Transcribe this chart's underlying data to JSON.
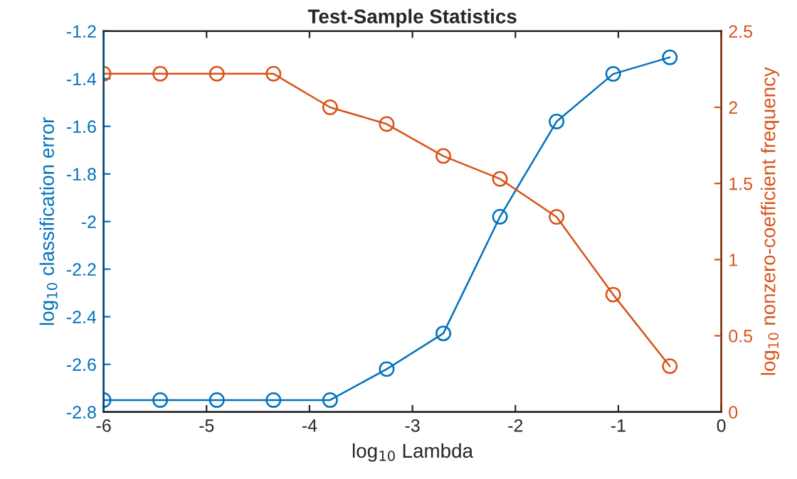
{
  "chart_data": {
    "type": "line",
    "title": "Test-Sample Statistics",
    "xlabel": "log$_{10}$ Lambda",
    "ylabel": "log$_{10}$ classification error",
    "y2label": "log$_{10}$ nonzero-coefficient frequency",
    "x": [
      -6,
      -5.45,
      -4.9,
      -4.35,
      -3.8,
      -3.25,
      -2.7,
      -2.15,
      -1.6,
      -1.05,
      -0.5
    ],
    "series": [
      {
        "color": "#0072bd",
        "values": [
          -2.75,
          -2.75,
          -2.75,
          -2.75,
          -2.75,
          -2.62,
          -2.47,
          -1.98,
          -1.58,
          -1.38,
          -1.31
        ]
      },
      {
        "color": "#d95319",
        "axis": "y2",
        "values": [
          2.22,
          2.22,
          2.22,
          2.22,
          2.0,
          1.89,
          1.68,
          1.53,
          1.28,
          0.77,
          0.3
        ]
      }
    ],
    "xlim": [
      -6,
      0
    ],
    "xticks": [
      -6,
      -5,
      -4,
      -3,
      -2,
      -1,
      0
    ],
    "ylim": [
      -2.8,
      -1.2
    ],
    "yticks": [
      -2.8,
      -2.6,
      -2.4,
      -2.2,
      -2,
      -1.8,
      -1.6,
      -1.4,
      -1.2
    ],
    "y2lim": [
      0,
      2.5
    ],
    "y2ticks": [
      0,
      0.5,
      1,
      1.5,
      2,
      2.5
    ],
    "marker": "circle",
    "line_style": "solid",
    "grid": false
  }
}
